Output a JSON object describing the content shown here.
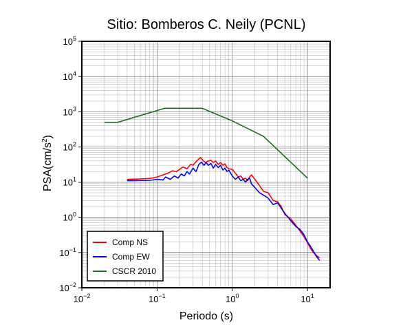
{
  "chart_data": {
    "type": "line",
    "title": "Sitio: Bomberos C. Neily (PCNL)",
    "xlabel": "Periodo (s)",
    "ylabel_main": "PSA(cm/s",
    "ylabel_sup": "2",
    "ylabel_close": ")",
    "xscale": "log",
    "yscale": "log",
    "xlim": [
      0.01,
      20
    ],
    "ylim": [
      0.01,
      100000
    ],
    "grid": true,
    "legend_position": "bottom-left",
    "x_ticks": [
      {
        "value": 0.01,
        "base": "10",
        "exp": "−2"
      },
      {
        "value": 0.1,
        "base": "10",
        "exp": "−1"
      },
      {
        "value": 1,
        "base": "10",
        "exp": "0"
      },
      {
        "value": 10,
        "base": "10",
        "exp": "1"
      }
    ],
    "y_ticks": [
      {
        "value": 0.01,
        "base": "10",
        "exp": "−2"
      },
      {
        "value": 0.1,
        "base": "10",
        "exp": "−1"
      },
      {
        "value": 1,
        "base": "10",
        "exp": "0"
      },
      {
        "value": 10,
        "base": "10",
        "exp": "1"
      },
      {
        "value": 100,
        "base": "10",
        "exp": "2"
      },
      {
        "value": 1000,
        "base": "10",
        "exp": "3"
      },
      {
        "value": 10000,
        "base": "10",
        "exp": "4"
      },
      {
        "value": 100000,
        "base": "10",
        "exp": "5"
      }
    ],
    "series": [
      {
        "name": "Comp NS",
        "color": "#ff0000",
        "points": [
          [
            0.04,
            12
          ],
          [
            0.05,
            12.2
          ],
          [
            0.06,
            12.3
          ],
          [
            0.07,
            12.5
          ],
          [
            0.08,
            12.8
          ],
          [
            0.09,
            13.3
          ],
          [
            0.1,
            14
          ],
          [
            0.12,
            16
          ],
          [
            0.14,
            18
          ],
          [
            0.16,
            21
          ],
          [
            0.18,
            20
          ],
          [
            0.2,
            23
          ],
          [
            0.22,
            27
          ],
          [
            0.25,
            24
          ],
          [
            0.28,
            32
          ],
          [
            0.3,
            30
          ],
          [
            0.33,
            38
          ],
          [
            0.36,
            46
          ],
          [
            0.38,
            50
          ],
          [
            0.41,
            41
          ],
          [
            0.44,
            36
          ],
          [
            0.48,
            40
          ],
          [
            0.52,
            42
          ],
          [
            0.56,
            36
          ],
          [
            0.6,
            40
          ],
          [
            0.65,
            32
          ],
          [
            0.7,
            36
          ],
          [
            0.75,
            30
          ],
          [
            0.8,
            33
          ],
          [
            0.85,
            26
          ],
          [
            0.9,
            24
          ],
          [
            1,
            23
          ],
          [
            1.1,
            18
          ],
          [
            1.2,
            14
          ],
          [
            1.3,
            15
          ],
          [
            1.4,
            12
          ],
          [
            1.5,
            13
          ],
          [
            1.6,
            11
          ],
          [
            1.7,
            14
          ],
          [
            1.8,
            16
          ],
          [
            2,
            12
          ],
          [
            2.3,
            8
          ],
          [
            2.6,
            5.5
          ],
          [
            3,
            5
          ],
          [
            3.5,
            3
          ],
          [
            4,
            2.8
          ],
          [
            4.5,
            2
          ],
          [
            5,
            1.2
          ],
          [
            6,
            0.9
          ],
          [
            7,
            0.6
          ],
          [
            8,
            0.4
          ],
          [
            9,
            0.28
          ],
          [
            10,
            0.19
          ],
          [
            11,
            0.13
          ],
          [
            12,
            0.1
          ],
          [
            13,
            0.085
          ],
          [
            14.5,
            0.07
          ]
        ]
      },
      {
        "name": "Comp EW",
        "color": "#0000ff",
        "points": [
          [
            0.04,
            11
          ],
          [
            0.05,
            11
          ],
          [
            0.06,
            11.1
          ],
          [
            0.07,
            11.2
          ],
          [
            0.08,
            11.3
          ],
          [
            0.09,
            11.6
          ],
          [
            0.1,
            12
          ],
          [
            0.12,
            11.5
          ],
          [
            0.13,
            14
          ],
          [
            0.15,
            12
          ],
          [
            0.17,
            15
          ],
          [
            0.19,
            13
          ],
          [
            0.21,
            17
          ],
          [
            0.23,
            15
          ],
          [
            0.25,
            20
          ],
          [
            0.27,
            17
          ],
          [
            0.3,
            25
          ],
          [
            0.33,
            20
          ],
          [
            0.36,
            32
          ],
          [
            0.39,
            37
          ],
          [
            0.42,
            30
          ],
          [
            0.45,
            36
          ],
          [
            0.48,
            30
          ],
          [
            0.52,
            34
          ],
          [
            0.56,
            25
          ],
          [
            0.6,
            32
          ],
          [
            0.65,
            26
          ],
          [
            0.7,
            30
          ],
          [
            0.75,
            22
          ],
          [
            0.8,
            25
          ],
          [
            0.85,
            20
          ],
          [
            0.9,
            22
          ],
          [
            1,
            15
          ],
          [
            1.1,
            12
          ],
          [
            1.2,
            14
          ],
          [
            1.3,
            11
          ],
          [
            1.4,
            12
          ],
          [
            1.5,
            10
          ],
          [
            1.6,
            12
          ],
          [
            1.7,
            13
          ],
          [
            1.8,
            9
          ],
          [
            2,
            7
          ],
          [
            2.3,
            5
          ],
          [
            2.6,
            4.3
          ],
          [
            3,
            3.5
          ],
          [
            3.5,
            2.3
          ],
          [
            4,
            2.6
          ],
          [
            4.5,
            1.8
          ],
          [
            5,
            1.3
          ],
          [
            6,
            0.8
          ],
          [
            7,
            0.55
          ],
          [
            8,
            0.45
          ],
          [
            9,
            0.32
          ],
          [
            10,
            0.2
          ],
          [
            11,
            0.15
          ],
          [
            12,
            0.11
          ],
          [
            13,
            0.08
          ],
          [
            14.5,
            0.06
          ]
        ]
      },
      {
        "name": "CSCR 2010",
        "color": "#1a6e1a",
        "points": [
          [
            0.02,
            500
          ],
          [
            0.03,
            500
          ],
          [
            0.125,
            1250
          ],
          [
            0.4,
            1250
          ],
          [
            1,
            550
          ],
          [
            2.6,
            200
          ],
          [
            10,
            13
          ]
        ]
      }
    ]
  }
}
